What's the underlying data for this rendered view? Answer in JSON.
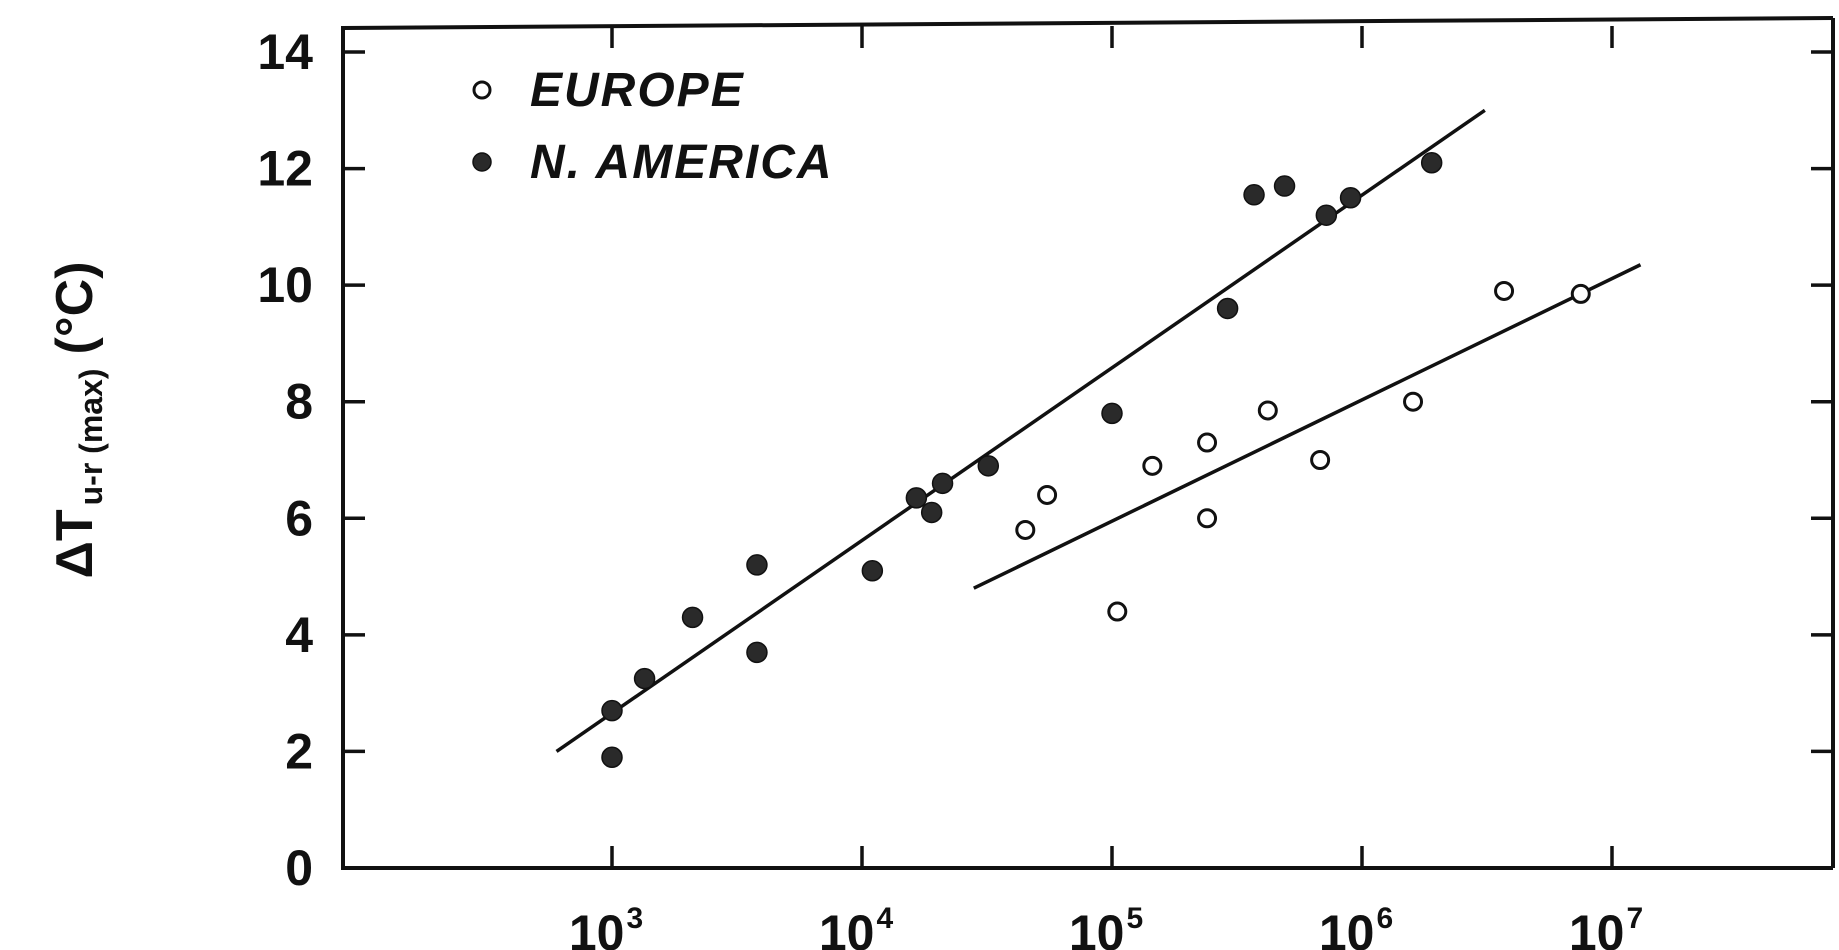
{
  "chart_data": {
    "type": "scatter",
    "title": "",
    "xlabel": "",
    "ylabel": "ΔT",
    "ylabel_subscript": "u-r (max)",
    "ylabel_unit": "(°C)",
    "x_scale": "log",
    "xlim": [
      100,
      60000000
    ],
    "ylim": [
      0,
      14
    ],
    "x_ticks": [
      {
        "base": "10",
        "exp": "3",
        "value": 1000
      },
      {
        "base": "10",
        "exp": "4",
        "value": 10000
      },
      {
        "base": "10",
        "exp": "5",
        "value": 100000
      },
      {
        "base": "10",
        "exp": "6",
        "value": 1000000
      },
      {
        "base": "10",
        "exp": "7",
        "value": 10000000
      }
    ],
    "y_ticks": [
      "0",
      "2",
      "4",
      "6",
      "8",
      "10",
      "12",
      "14"
    ],
    "grid": false,
    "legend_position": "top-left",
    "series": [
      {
        "name": "EUROPE",
        "marker": "open-circle",
        "points": [
          {
            "x": 45000,
            "y": 5.8
          },
          {
            "x": 55000,
            "y": 6.4
          },
          {
            "x": 105000,
            "y": 4.4
          },
          {
            "x": 145000,
            "y": 6.9
          },
          {
            "x": 240000,
            "y": 7.3
          },
          {
            "x": 240000,
            "y": 6.0
          },
          {
            "x": 420000,
            "y": 7.85
          },
          {
            "x": 680000,
            "y": 7.0
          },
          {
            "x": 1600000,
            "y": 8.0
          },
          {
            "x": 3700000,
            "y": 9.9
          },
          {
            "x": 7500000,
            "y": 9.85
          }
        ],
        "fit": {
          "x": [
            28000,
            13000000
          ],
          "y": [
            4.8,
            10.35
          ]
        }
      },
      {
        "name": "N. AMERICA",
        "marker": "filled-circle",
        "points": [
          {
            "x": 1000,
            "y": 2.7
          },
          {
            "x": 1000,
            "y": 1.9
          },
          {
            "x": 1350,
            "y": 3.25
          },
          {
            "x": 2100,
            "y": 4.3
          },
          {
            "x": 3800,
            "y": 3.7
          },
          {
            "x": 3800,
            "y": 5.2
          },
          {
            "x": 11000,
            "y": 5.1
          },
          {
            "x": 16500,
            "y": 6.35
          },
          {
            "x": 19000,
            "y": 6.1
          },
          {
            "x": 21000,
            "y": 6.6
          },
          {
            "x": 32000,
            "y": 6.9
          },
          {
            "x": 100000,
            "y": 7.8
          },
          {
            "x": 290000,
            "y": 9.6
          },
          {
            "x": 370000,
            "y": 11.55
          },
          {
            "x": 490000,
            "y": 11.7
          },
          {
            "x": 720000,
            "y": 11.2
          },
          {
            "x": 900000,
            "y": 11.5
          },
          {
            "x": 1900000,
            "y": 12.1
          }
        ],
        "fit": {
          "x": [
            600,
            3100000
          ],
          "y": [
            2.0,
            13.0
          ]
        }
      }
    ]
  }
}
